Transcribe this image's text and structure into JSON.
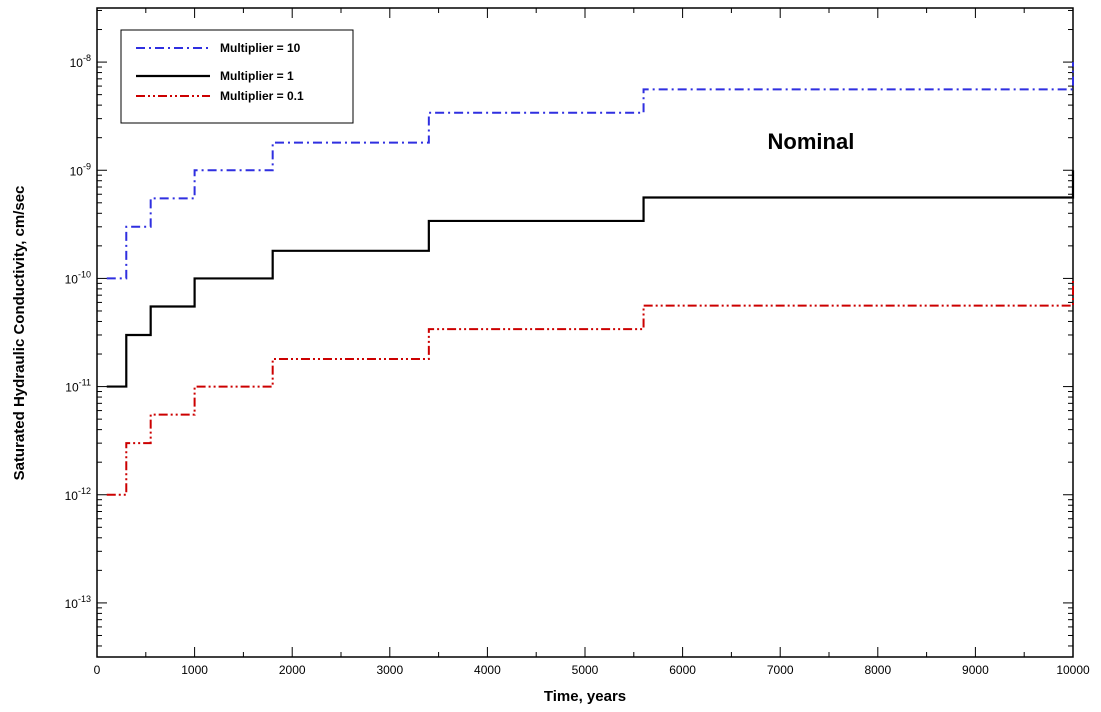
{
  "chart_data": {
    "type": "line",
    "xlabel": "Time, years",
    "ylabel": "Saturated Hydraulic Conductivity, cm/sec",
    "xlim": [
      0,
      10000
    ],
    "ylim_log10": [
      -13.5,
      -7.5
    ],
    "y_scale": "log",
    "grid": false,
    "legend_position": "top-left",
    "x_ticks": [
      0,
      1000,
      2000,
      3000,
      4000,
      5000,
      6000,
      7000,
      8000,
      9000,
      10000
    ],
    "x_tick_labels": [
      "0",
      "1000",
      "2000",
      "3000",
      "4000",
      "5000",
      "6000",
      "7000",
      "8000",
      "9000",
      "10000"
    ],
    "y_ticks": [
      {
        "exp": -13,
        "base": "10",
        "sup": "-13"
      },
      {
        "exp": -12,
        "base": "10",
        "sup": "-12"
      },
      {
        "exp": -11,
        "base": "10",
        "sup": "-11"
      },
      {
        "exp": -10,
        "base": "10",
        "sup": "-10"
      },
      {
        "exp": -9,
        "base": "10",
        "sup": "-9"
      },
      {
        "exp": -8,
        "base": "10",
        "sup": "-8"
      }
    ],
    "x": [
      100,
      300,
      550,
      1000,
      1800,
      3400,
      5600,
      10000
    ],
    "series": [
      {
        "name": "Multiplier = 10",
        "color": "#2f2fe0",
        "style": "dash-dot",
        "values": [
          1e-10,
          3e-10,
          5.5e-10,
          1e-09,
          1.8e-09,
          3.4e-09,
          5.6e-09,
          1e-08
        ]
      },
      {
        "name": "Multiplier = 1",
        "color": "#000000",
        "style": "solid",
        "values": [
          1e-11,
          3e-11,
          5.5e-11,
          1e-10,
          1.8e-10,
          3.4e-10,
          5.6e-10,
          1e-09
        ]
      },
      {
        "name": "Multiplier = 0.1",
        "color": "#cc0000",
        "style": "dash-dot-dot",
        "values": [
          1e-12,
          3e-12,
          5.5e-12,
          1e-11,
          1.8e-11,
          3.4e-11,
          5.6e-11,
          1e-10
        ]
      }
    ],
    "annotations": [
      {
        "text": "Nominal",
        "x": 6700,
        "y": 1.5e-09
      }
    ]
  }
}
